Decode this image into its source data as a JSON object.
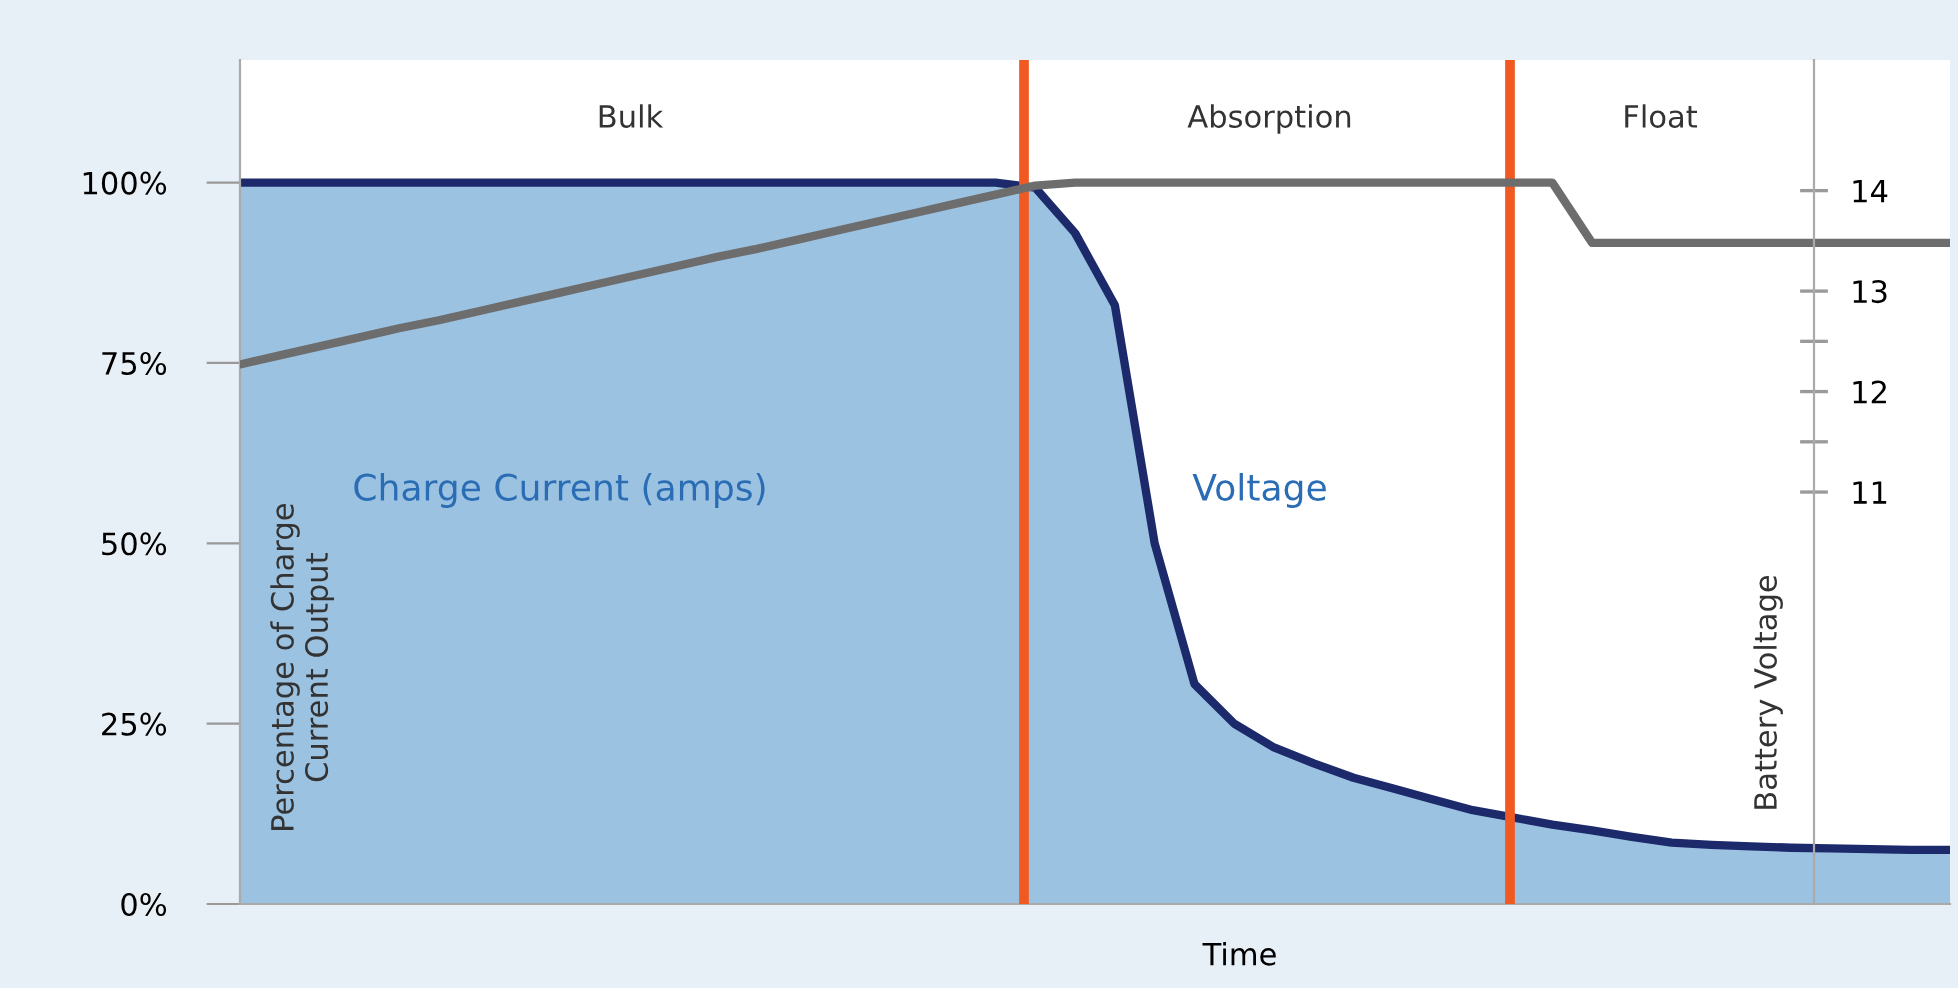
{
  "chart_data": {
    "type": "area",
    "xlabel": "Time",
    "ylabel": "Percentage of Charge\nCurrent Output",
    "y2label": "Battery Voltage",
    "categories": [
      null,
      null,
      null,
      null,
      null,
      null,
      null,
      null,
      null,
      null,
      null,
      null,
      null,
      null,
      null,
      null,
      null,
      null,
      null,
      null,
      null,
      null,
      null,
      null,
      null,
      null,
      null,
      null,
      null,
      null,
      null,
      null,
      null,
      null,
      null,
      null,
      null,
      null,
      null,
      null,
      null,
      null,
      null,
      null
    ],
    "series": [
      {
        "color": "#1c2a6b",
        "values": [
          100,
          100,
          100,
          100,
          100,
          100,
          100,
          100,
          100,
          100,
          100,
          100,
          100,
          100,
          100,
          100,
          100,
          100,
          100,
          100,
          99.3,
          93,
          83,
          50,
          30.5,
          25,
          21.7,
          19.5,
          17.5,
          16,
          14.5,
          13,
          12,
          11,
          10.2,
          9.3,
          8.5,
          8.2,
          8,
          7.8,
          7.7,
          7.6,
          7.5,
          7.5
        ]
      },
      {
        "type": "line",
        "axis": "y2",
        "color": "#6d6d6d",
        "values": [
          12.27,
          12.36,
          12.45,
          12.54,
          12.63,
          12.71,
          12.8,
          12.89,
          12.98,
          13.07,
          13.16,
          13.25,
          13.34,
          13.42,
          13.51,
          13.6,
          13.69,
          13.78,
          13.87,
          13.96,
          14.05,
          14.08,
          14.08,
          14.08,
          14.08,
          14.08,
          14.08,
          14.08,
          14.08,
          14.08,
          14.08,
          14.08,
          14.08,
          14.08,
          13.48,
          13.48,
          13.48,
          13.48,
          13.48,
          13.48,
          13.48,
          13.48,
          13.48,
          13.48
        ]
      }
    ],
    "ylim": [
      0,
      117
    ],
    "yticks": [
      {
        "value": 0,
        "label": "0%"
      },
      {
        "value": 25,
        "label": "25%"
      },
      {
        "value": 50,
        "label": "50%"
      },
      {
        "value": 75,
        "label": "75%"
      },
      {
        "value": 100,
        "label": "100%"
      }
    ],
    "y2lim": [
      6.9,
      15.3
    ],
    "y2ticks": [
      11,
      12,
      13,
      14
    ],
    "annotations": [
      "Bulk",
      "Absorption",
      "Float",
      "Charge Current (amps)",
      "Voltage"
    ]
  }
}
